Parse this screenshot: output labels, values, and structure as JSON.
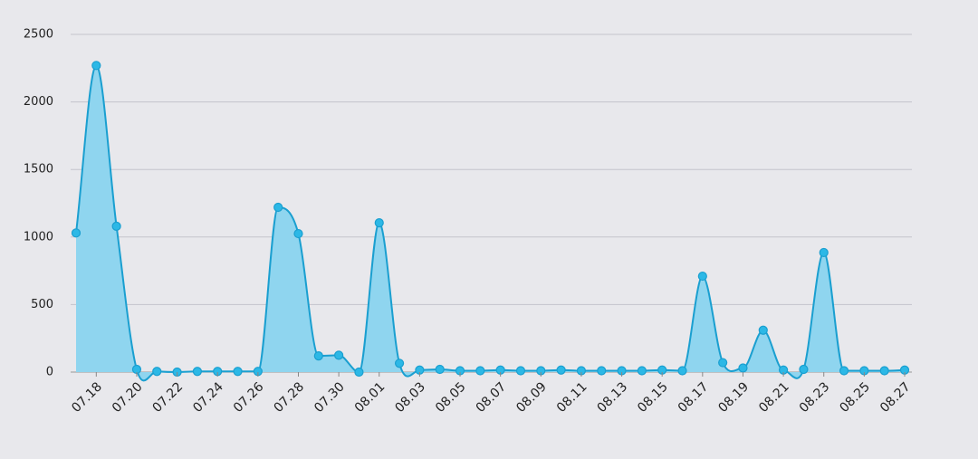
{
  "chart_data": {
    "type": "area",
    "categories": [
      null,
      "07.18",
      null,
      "07.20",
      null,
      "07.22",
      null,
      "07.24",
      null,
      "07.26",
      null,
      "07.28",
      null,
      "07.30",
      null,
      "08.01",
      null,
      "08.03",
      null,
      "08.05",
      null,
      "08.07",
      null,
      "08.09",
      null,
      "08.11",
      null,
      "08.13",
      null,
      "08.15",
      null,
      "08.17",
      null,
      "08.19",
      null,
      "08.21",
      null,
      "08.23",
      null,
      "08.25",
      null,
      "08.27"
    ],
    "values": [
      1030,
      2270,
      1080,
      20,
      5,
      0,
      5,
      5,
      5,
      5,
      1220,
      1025,
      120,
      125,
      0,
      1105,
      65,
      15,
      20,
      10,
      10,
      15,
      10,
      10,
      15,
      10,
      10,
      10,
      10,
      15,
      10,
      710,
      70,
      30,
      310,
      15,
      20,
      885,
      10,
      10,
      10,
      15
    ],
    "color": "#1a9fd0",
    "fill": "#8fd5ef",
    "ylim": [
      0,
      2500
    ],
    "yticks": [
      0,
      500,
      1000,
      1500,
      2000,
      2500
    ],
    "grid": true
  }
}
